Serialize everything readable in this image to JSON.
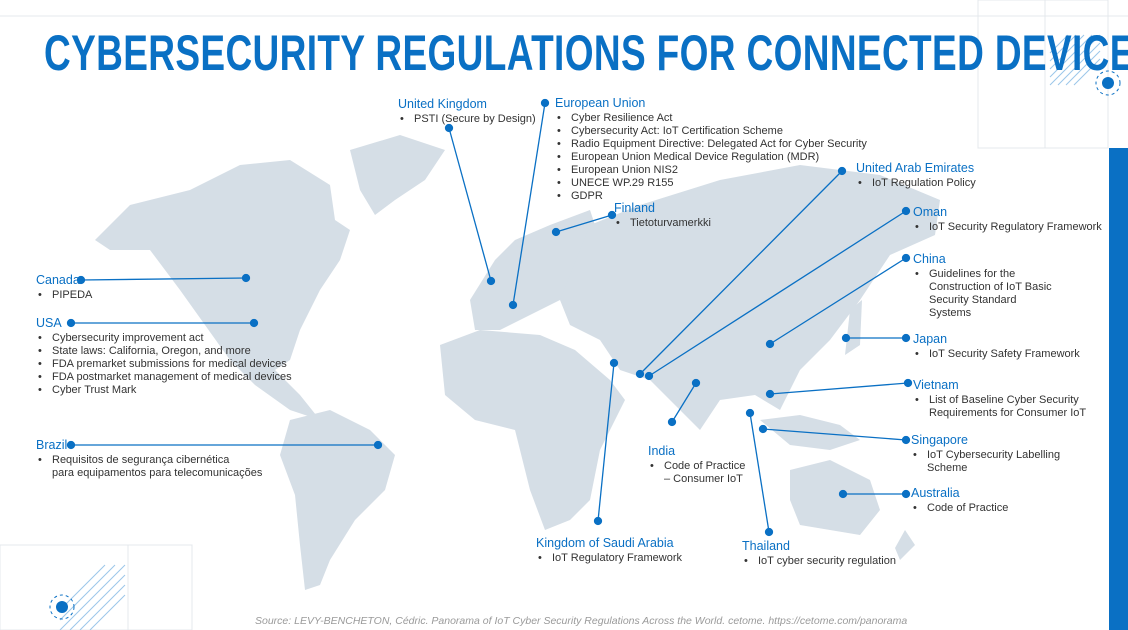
{
  "title": "CYBERSECURITY REGULATIONS FOR CONNECTED DEVICES",
  "colors": {
    "accent": "#0a70c4",
    "land": "#d5dee6",
    "text": "#333333"
  },
  "regions": [
    {
      "name": "United Kingdom",
      "items": [
        "PSTI (Secure by Design)"
      ]
    },
    {
      "name": "European Union",
      "items": [
        "Cyber Resilience Act",
        "Cybersecurity Act: IoT Certification Scheme",
        "Radio Equipment Directive: Delegated Act for Cyber Security",
        "European Union Medical Device Regulation (MDR)",
        "European Union NIS2",
        "UNECE WP.29 R155",
        "GDPR"
      ]
    },
    {
      "name": "Finland",
      "items": [
        "Tietoturvamerkki"
      ]
    },
    {
      "name": "Canada",
      "items": [
        "PIPEDA"
      ]
    },
    {
      "name": "USA",
      "items": [
        "Cybersecurity improvement act",
        "State laws: California, Oregon, and more",
        "FDA premarket submissions for medical devices",
        "FDA postmarket management of medical devices",
        "Cyber Trust Mark"
      ]
    },
    {
      "name": "Brazil",
      "items": [
        "Requisitos de segurança cibernética\npara equipamentos para telecomunicações"
      ]
    },
    {
      "name": "United Arab Emirates",
      "items": [
        "IoT Regulation Policy"
      ]
    },
    {
      "name": "Oman",
      "items": [
        "IoT Security Regulatory Framework"
      ]
    },
    {
      "name": "China",
      "items": [
        "Guidelines for the\nConstruction of IoT Basic\nSecurity Standard\nSystems"
      ]
    },
    {
      "name": "Japan",
      "items": [
        "IoT Security Safety Framework"
      ]
    },
    {
      "name": "Vietnam",
      "items": [
        "List of Baseline Cyber Security\nRequirements for Consumer IoT"
      ]
    },
    {
      "name": "India",
      "items": [
        "Code of Practice\n– Consumer IoT"
      ]
    },
    {
      "name": "Singapore",
      "items": [
        "IoT Cybersecurity Labelling\nScheme"
      ]
    },
    {
      "name": "Australia",
      "items": [
        "Code of Practice"
      ]
    },
    {
      "name": "Kingdom of Saudi Arabia",
      "items": [
        "IoT Regulatory Framework"
      ]
    },
    {
      "name": "Thailand",
      "items": [
        "IoT cyber security regulation"
      ]
    }
  ],
  "source": "Source: LEVY-BENCHETON, Cédric. Panorama of IoT Cyber Security Regulations Across the World. cetome. https://cetome.com/panorama"
}
